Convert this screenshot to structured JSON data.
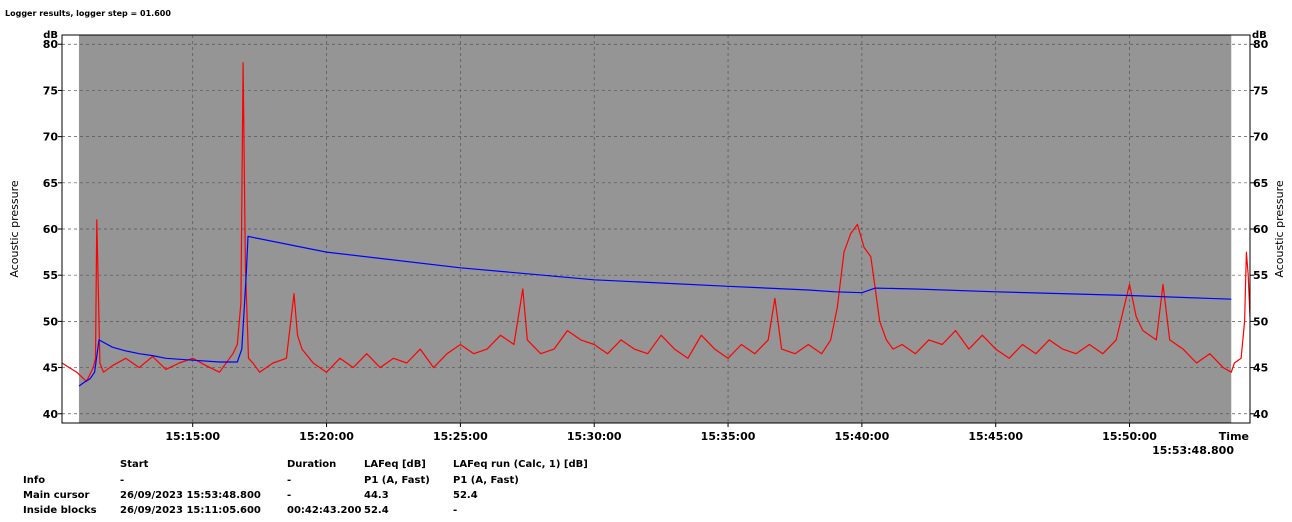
{
  "title": "Logger results, logger step = 01.600",
  "chart_data": {
    "type": "line",
    "ylabel": "Acoustic pressure",
    "yunit": "dB",
    "xlabel": "Time",
    "xlabel_value": "15:53:48.800",
    "ylim": [
      39,
      81
    ],
    "xlim": [
      "15:10:07",
      "15:54:30"
    ],
    "shaded_range": [
      "15:10:45",
      "15:53:48"
    ],
    "yticks": [
      40,
      45,
      50,
      55,
      60,
      65,
      70,
      75,
      80
    ],
    "xticks": [
      "15:15:00",
      "15:20:00",
      "15:25:00",
      "15:30:00",
      "15:35:00",
      "15:40:00",
      "15:45:00",
      "15:50:00"
    ],
    "grid": true,
    "colors": {
      "plot_bg": "#959595",
      "outside_bg": "#ffffff",
      "series_1": "#ff0000",
      "series_2": "#0000ff"
    },
    "series": [
      {
        "name": "LAFeq [dB]",
        "x": [
          "15:10:07",
          "15:10:40",
          "15:11:02",
          "15:11:17",
          "15:11:22",
          "15:11:25",
          "15:11:32",
          "15:11:40",
          "15:12:00",
          "15:12:30",
          "15:13:00",
          "15:13:30",
          "15:14:00",
          "15:14:30",
          "15:15:00",
          "15:15:30",
          "15:16:00",
          "15:16:30",
          "15:16:40",
          "15:16:48",
          "15:16:53",
          "15:16:58",
          "15:17:05",
          "15:17:15",
          "15:17:30",
          "15:18:00",
          "15:18:30",
          "15:18:47",
          "15:18:55",
          "15:19:05",
          "15:19:30",
          "15:20:00",
          "15:20:30",
          "15:21:00",
          "15:21:30",
          "15:22:00",
          "15:22:30",
          "15:23:00",
          "15:23:30",
          "15:24:00",
          "15:24:30",
          "15:25:00",
          "15:25:30",
          "15:26:00",
          "15:26:30",
          "15:27:00",
          "15:27:20",
          "15:27:30",
          "15:28:00",
          "15:28:30",
          "15:29:00",
          "15:29:30",
          "15:30:00",
          "15:30:30",
          "15:31:00",
          "15:31:30",
          "15:32:00",
          "15:32:30",
          "15:33:00",
          "15:33:30",
          "15:34:00",
          "15:34:30",
          "15:35:00",
          "15:35:30",
          "15:36:00",
          "15:36:30",
          "15:36:45",
          "15:37:00",
          "15:37:30",
          "15:38:00",
          "15:38:30",
          "15:38:50",
          "15:39:05",
          "15:39:20",
          "15:39:35",
          "15:39:50",
          "15:40:05",
          "15:40:20",
          "15:40:30",
          "15:40:40",
          "15:40:55",
          "15:41:10",
          "15:41:30",
          "15:42:00",
          "15:42:30",
          "15:43:00",
          "15:43:30",
          "15:44:00",
          "15:44:30",
          "15:45:00",
          "15:45:30",
          "15:46:00",
          "15:46:30",
          "15:47:00",
          "15:47:30",
          "15:48:00",
          "15:48:30",
          "15:49:00",
          "15:49:30",
          "15:50:00",
          "15:50:15",
          "15:50:30",
          "15:51:00",
          "15:51:15",
          "15:51:30",
          "15:52:00",
          "15:52:30",
          "15:53:00",
          "15:53:30",
          "15:53:48",
          "15:53:55",
          "15:54:10",
          "15:54:18",
          "15:54:22",
          "15:54:26",
          "15:54:30"
        ],
        "values": [
          45.5,
          44.5,
          43.5,
          45.0,
          46.0,
          61.0,
          45.5,
          44.5,
          45.2,
          46.0,
          45.0,
          46.2,
          44.8,
          45.5,
          46.0,
          45.2,
          44.5,
          46.5,
          47.5,
          52.0,
          78.0,
          56.0,
          46.0,
          45.5,
          44.5,
          45.5,
          46.0,
          53.0,
          48.5,
          47.0,
          45.5,
          44.5,
          46.0,
          45.0,
          46.5,
          45.0,
          46.0,
          45.5,
          47.0,
          45.0,
          46.5,
          47.5,
          46.5,
          47.0,
          48.5,
          47.5,
          53.5,
          48.0,
          46.5,
          47.0,
          49.0,
          48.0,
          47.5,
          46.5,
          48.0,
          47.0,
          46.5,
          48.5,
          47.0,
          46.0,
          48.5,
          47.0,
          46.0,
          47.5,
          46.5,
          48.0,
          52.5,
          47.0,
          46.5,
          47.5,
          46.5,
          48.0,
          51.5,
          57.5,
          59.5,
          60.5,
          58.0,
          57.0,
          53.5,
          50.0,
          48.0,
          47.0,
          47.5,
          46.5,
          48.0,
          47.5,
          49.0,
          47.0,
          48.5,
          47.0,
          46.0,
          47.5,
          46.5,
          48.0,
          47.0,
          46.5,
          47.5,
          46.5,
          48.0,
          54.0,
          50.5,
          49.0,
          48.0,
          54.0,
          48.0,
          47.0,
          45.5,
          46.5,
          45.0,
          44.5,
          45.5,
          46.0,
          50.0,
          57.5,
          55.0,
          50.5
        ]
      },
      {
        "name": "LAFeq run (Calc, 1) [dB]",
        "x": [
          "15:10:45",
          "15:11:00",
          "15:11:10",
          "15:11:20",
          "15:11:30",
          "15:12:00",
          "15:12:30",
          "15:13:00",
          "15:13:30",
          "15:14:00",
          "15:15:00",
          "15:16:00",
          "15:16:40",
          "15:16:50",
          "15:17:00",
          "15:17:04",
          "15:20:00",
          "15:25:00",
          "15:30:00",
          "15:35:00",
          "15:38:00",
          "15:39:00",
          "15:40:00",
          "15:40:30",
          "15:42:00",
          "15:45:00",
          "15:50:00",
          "15:53:48"
        ],
        "values": [
          43.0,
          43.5,
          43.8,
          44.5,
          48.0,
          47.2,
          46.8,
          46.5,
          46.3,
          46.0,
          45.8,
          45.6,
          45.6,
          47.0,
          55.0,
          59.2,
          57.5,
          55.8,
          54.5,
          53.8,
          53.4,
          53.2,
          53.1,
          53.6,
          53.5,
          53.2,
          52.8,
          52.4
        ]
      }
    ]
  },
  "info_table": {
    "headers": [
      "",
      "Start",
      "Duration",
      "LAFeq [dB]",
      "LAFeq run (Calc, 1) [dB]"
    ],
    "rows": [
      [
        "Info",
        "-",
        "-",
        "P1 (A, Fast)",
        "P1 (A, Fast)"
      ],
      [
        "Main cursor",
        "26/09/2023 15:53:48.800",
        "-",
        "44.3",
        "52.4"
      ],
      [
        "Inside blocks",
        "26/09/2023 15:11:05.600",
        "00:42:43.200",
        "52.4",
        "-"
      ]
    ]
  }
}
